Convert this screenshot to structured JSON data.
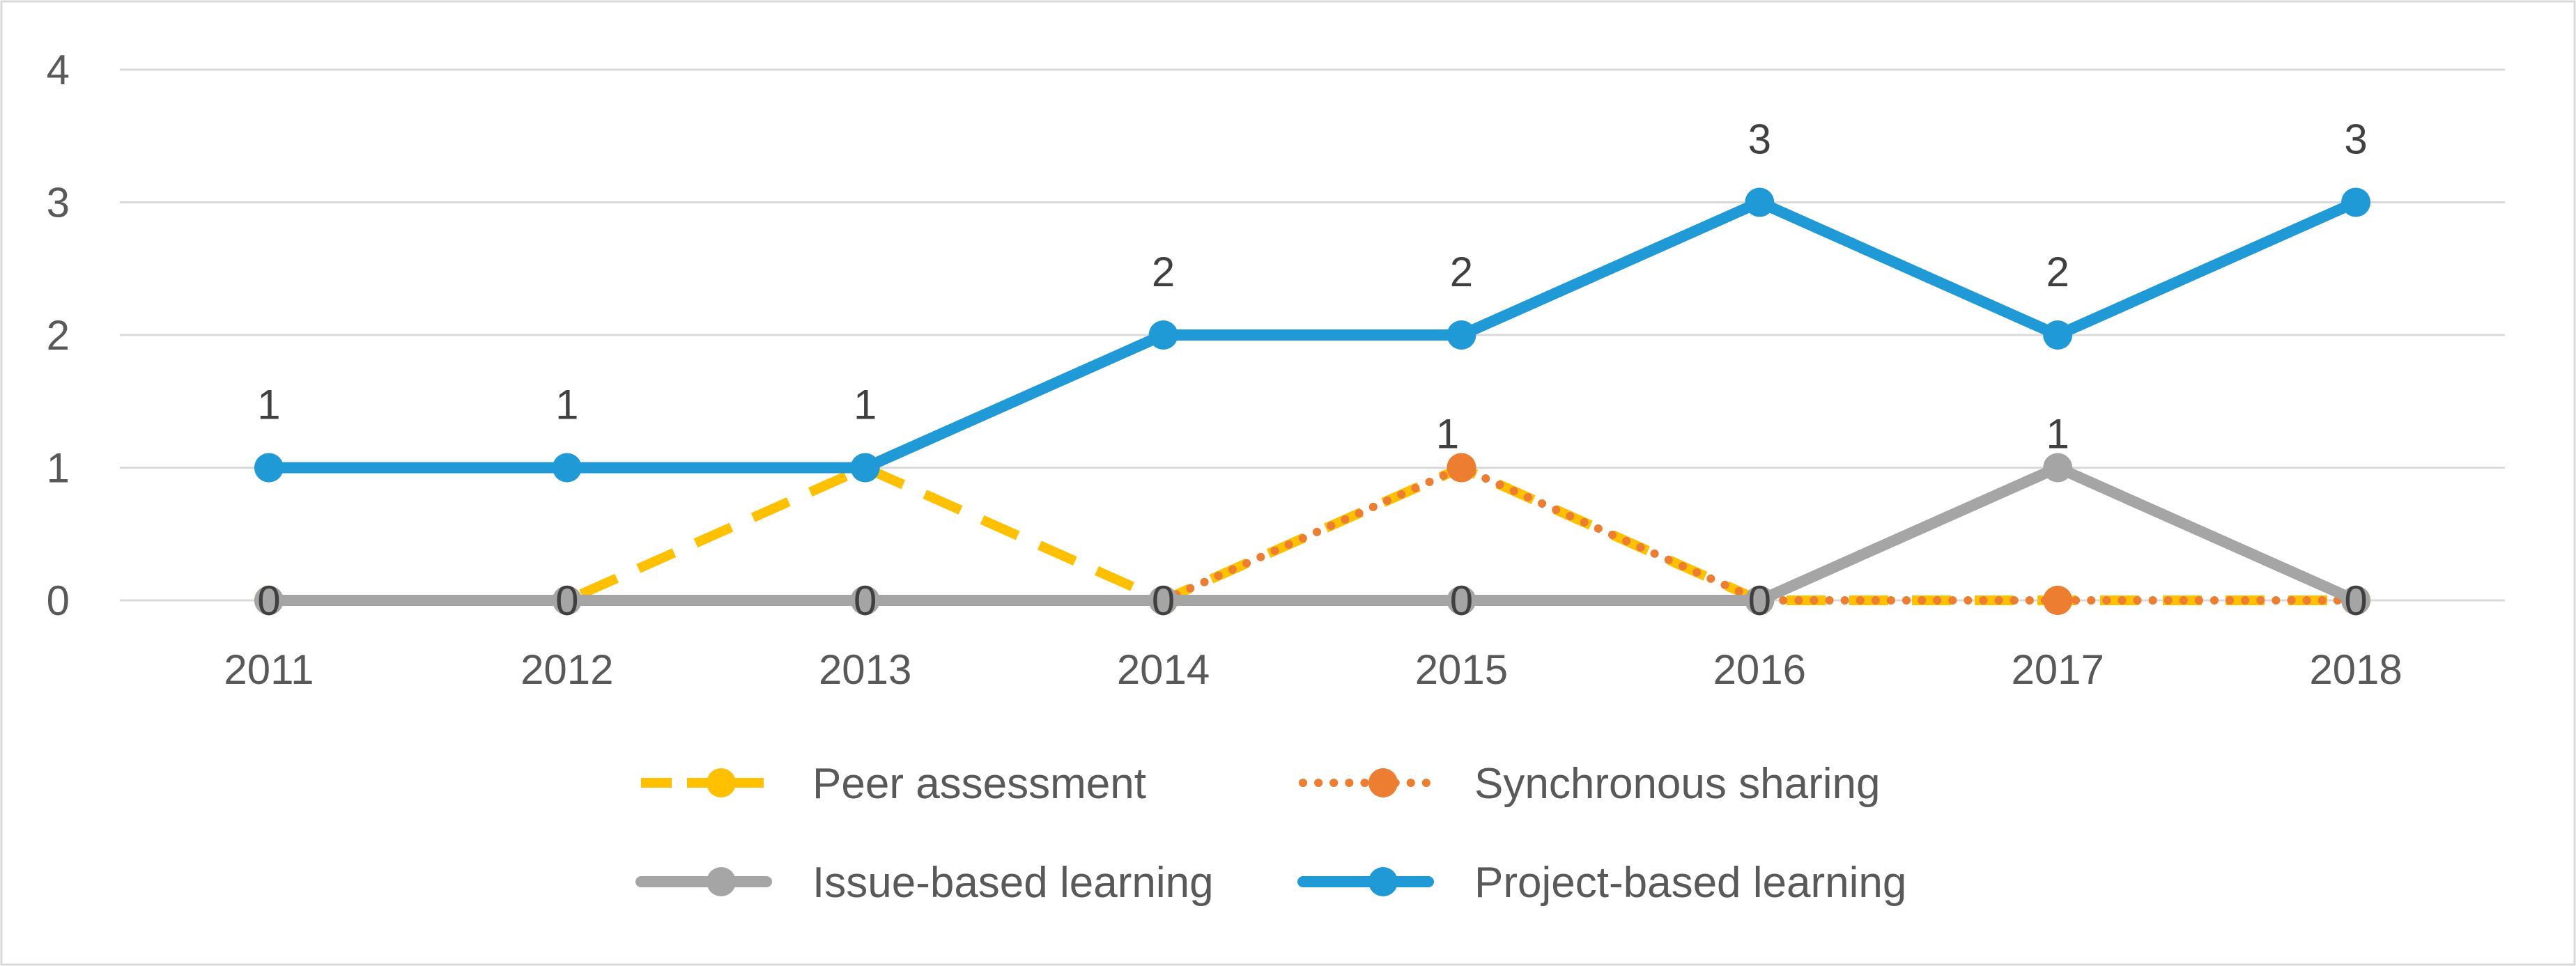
{
  "chart_data": {
    "type": "line",
    "title": "",
    "xlabel": "",
    "ylabel": "",
    "categories": [
      "2011",
      "2012",
      "2013",
      "2014",
      "2015",
      "2016",
      "2017",
      "2018"
    ],
    "ylim": [
      0,
      4
    ],
    "yticks": [
      0,
      1,
      2,
      3,
      4
    ],
    "grid": true,
    "legend_position": "bottom",
    "series": [
      {
        "name": "Peer assessment",
        "values": [
          0,
          0,
          1,
          0,
          1,
          0,
          0,
          0
        ],
        "color": "#FFC000",
        "line_style": "dashed",
        "show_labels": false
      },
      {
        "name": "Synchronous sharing",
        "values": [
          0,
          0,
          0,
          0,
          1,
          0,
          0,
          0
        ],
        "color": "#ED7D31",
        "line_style": "dotted",
        "show_labels": false
      },
      {
        "name": "Issue-based learning",
        "values": [
          0,
          0,
          0,
          0,
          0,
          0,
          1,
          0
        ],
        "color": "#A5A5A5",
        "line_style": "solid",
        "show_labels": true
      },
      {
        "name": "Project-based learning",
        "values": [
          1,
          1,
          1,
          2,
          2,
          3,
          2,
          3
        ],
        "color": "#1F9AD6",
        "line_style": "solid",
        "show_labels": true
      }
    ]
  }
}
